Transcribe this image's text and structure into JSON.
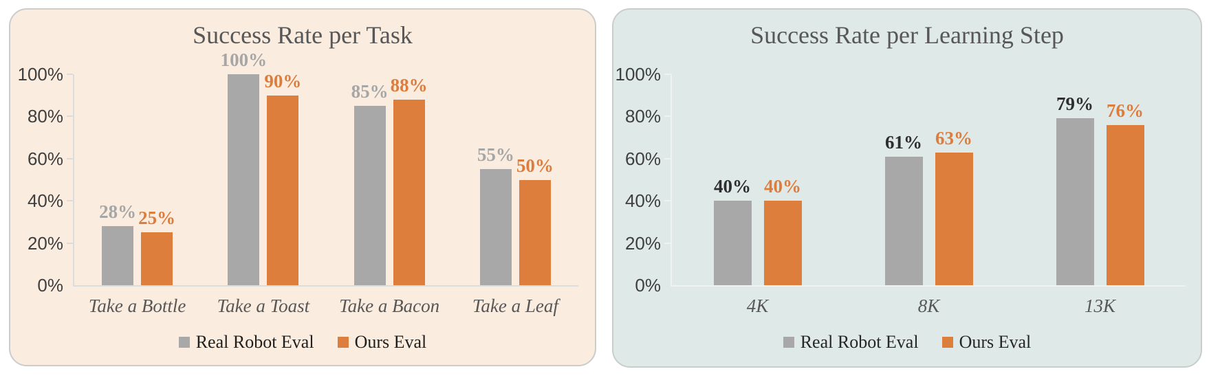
{
  "chart_data": [
    {
      "type": "bar",
      "title": "Success Rate per Task",
      "categories": [
        "Take a Bottle",
        "Take a Toast",
        "Take a Bacon",
        "Take a Leaf"
      ],
      "series": [
        {
          "name": "Real Robot Eval",
          "values": [
            28,
            100,
            85,
            55
          ],
          "data_labels": [
            "28%",
            "100%",
            "85%",
            "55%"
          ],
          "bar_color": "#a8a8a8",
          "label_color": "#a6a6a6"
        },
        {
          "name": "Ours Eval",
          "values": [
            25,
            90,
            88,
            50
          ],
          "data_labels": [
            "25%",
            "90%",
            "88%",
            "50%"
          ],
          "bar_color": "#de7e3c",
          "label_color": "#dd7d3d"
        }
      ],
      "ylim": [
        0,
        100
      ],
      "y_tick_values": [
        0,
        20,
        40,
        60,
        80,
        100
      ],
      "y_tick_labels": [
        "0%",
        "20%",
        "40%",
        "60%",
        "80%",
        "100%"
      ],
      "grid": false,
      "legend_position": "bottom",
      "legend": [
        "Real Robot Eval",
        "Ours Eval"
      ],
      "colors": {
        "card_bg": "#faecdf",
        "card_border": "#cccccc",
        "axis": "#dcdcdc",
        "tick_label": "#3f3f3f",
        "category_label": "#575757",
        "title": "#575757",
        "legend_text": "#1f1f1f"
      }
    },
    {
      "type": "bar",
      "title": "Success Rate per Learning Step",
      "categories": [
        "4K",
        "8K",
        "13K"
      ],
      "series": [
        {
          "name": "Real Robot Eval",
          "values": [
            40,
            61,
            79
          ],
          "data_labels": [
            "40%",
            "61%",
            "79%"
          ],
          "bar_color": "#a8a8a8",
          "label_color": "#2e2e2e"
        },
        {
          "name": "Ours Eval",
          "values": [
            40,
            63,
            76
          ],
          "data_labels": [
            "40%",
            "63%",
            "76%"
          ],
          "bar_color": "#de7e3c",
          "label_color": "#dd7d3d"
        }
      ],
      "ylim": [
        0,
        100
      ],
      "y_tick_values": [
        0,
        20,
        40,
        60,
        80,
        100
      ],
      "y_tick_labels": [
        "0%",
        "20%",
        "40%",
        "60%",
        "80%",
        "100%"
      ],
      "grid": false,
      "legend_position": "bottom",
      "legend": [
        "Real Robot Eval",
        "Ours Eval"
      ],
      "colors": {
        "card_bg": "#dfe9e7",
        "card_border": "#c9cdcc",
        "axis": "#eef3f1",
        "tick_label": "#3f3f3f",
        "category_label": "#575757",
        "title": "#575757",
        "legend_text": "#262626"
      }
    }
  ]
}
